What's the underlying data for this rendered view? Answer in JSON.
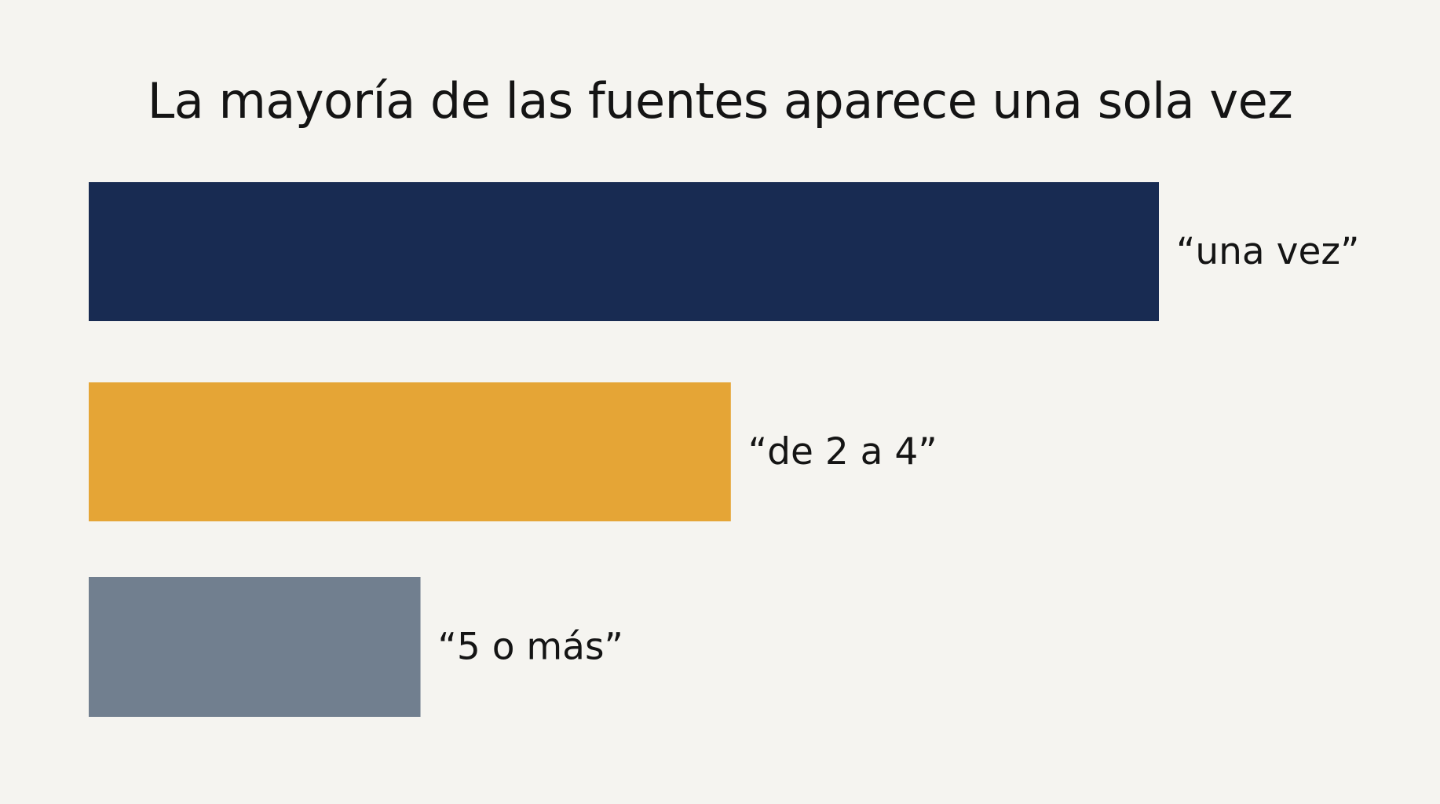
{
  "chart_data": {
    "type": "bar",
    "orientation": "horizontal",
    "title": "La mayoría de las fuentes aparece una sola vez",
    "categories": [
      "“una vez”",
      "“de 2 a 4”",
      "“5 o más”"
    ],
    "values": [
      100,
      60,
      31
    ],
    "value_unit": "relative",
    "colors": [
      "#182b52",
      "#e5a536",
      "#717f8f"
    ],
    "grid": false,
    "axes_visible": false,
    "legend": "none",
    "label_placement": "right-of-bar"
  }
}
